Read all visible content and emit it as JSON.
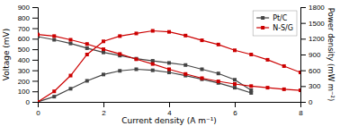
{
  "chart_data": {
    "type": "line",
    "x_label": "Current density (A m⁻¹)",
    "y_label": "Voltage (mV)",
    "y2_label": "Power density (mW m⁻²)",
    "xlim": [
      0,
      8
    ],
    "xticks": [
      0,
      2,
      4,
      6,
      8
    ],
    "ylim": [
      0,
      900
    ],
    "yticks": [
      0,
      100,
      200,
      300,
      400,
      500,
      600,
      700,
      800,
      900
    ],
    "y2lim": [
      0,
      1800
    ],
    "y2ticks": [
      0,
      300,
      600,
      900,
      1200,
      1500,
      1800
    ],
    "legend": "upper right",
    "series": [
      {
        "name": "Pt/C",
        "color": "#444444",
        "marker": "square",
        "x": [
          0,
          0.5,
          1.0,
          1.5,
          2.0,
          2.5,
          3.0,
          3.5,
          4.0,
          4.5,
          5.0,
          5.5,
          6.0,
          6.5
        ],
        "values": [
          620,
          590,
          555,
          510,
          470,
          440,
          410,
          390,
          370,
          350,
          310,
          270,
          210,
          110
        ]
      },
      {
        "color": "#444444",
        "marker": "square",
        "axis": "y2",
        "x": [
          0,
          0.5,
          1.0,
          1.5,
          2.0,
          2.5,
          3.0,
          3.5,
          4.0,
          4.5,
          5.0,
          5.5,
          6.0,
          6.5
        ],
        "values": [
          0,
          100,
          250,
          400,
          520,
          590,
          620,
          600,
          560,
          500,
          430,
          360,
          270,
          170
        ]
      },
      {
        "name": "N-S/G",
        "color": "#cc0000",
        "marker": "square",
        "x": [
          0,
          0.5,
          1.0,
          1.5,
          2.0,
          2.5,
          3.0,
          3.5,
          4.0,
          4.5,
          5.0,
          5.5,
          6.0,
          6.5,
          7.0,
          7.5,
          8.0
        ],
        "values": [
          640,
          625,
          590,
          550,
          500,
          455,
          405,
          360,
          310,
          265,
          225,
          195,
          170,
          150,
          135,
          120,
          110
        ]
      },
      {
        "color": "#cc0000",
        "marker": "square",
        "axis": "y2",
        "x": [
          0,
          0.5,
          1.0,
          1.5,
          2.0,
          2.5,
          3.0,
          3.5,
          4.0,
          4.5,
          5.0,
          5.5,
          6.0,
          6.5,
          7.0,
          7.5,
          8.0
        ],
        "values": [
          0,
          200,
          500,
          900,
          1150,
          1250,
          1300,
          1350,
          1330,
          1260,
          1170,
          1090,
          980,
          900,
          800,
          680,
          560
        ]
      }
    ]
  }
}
